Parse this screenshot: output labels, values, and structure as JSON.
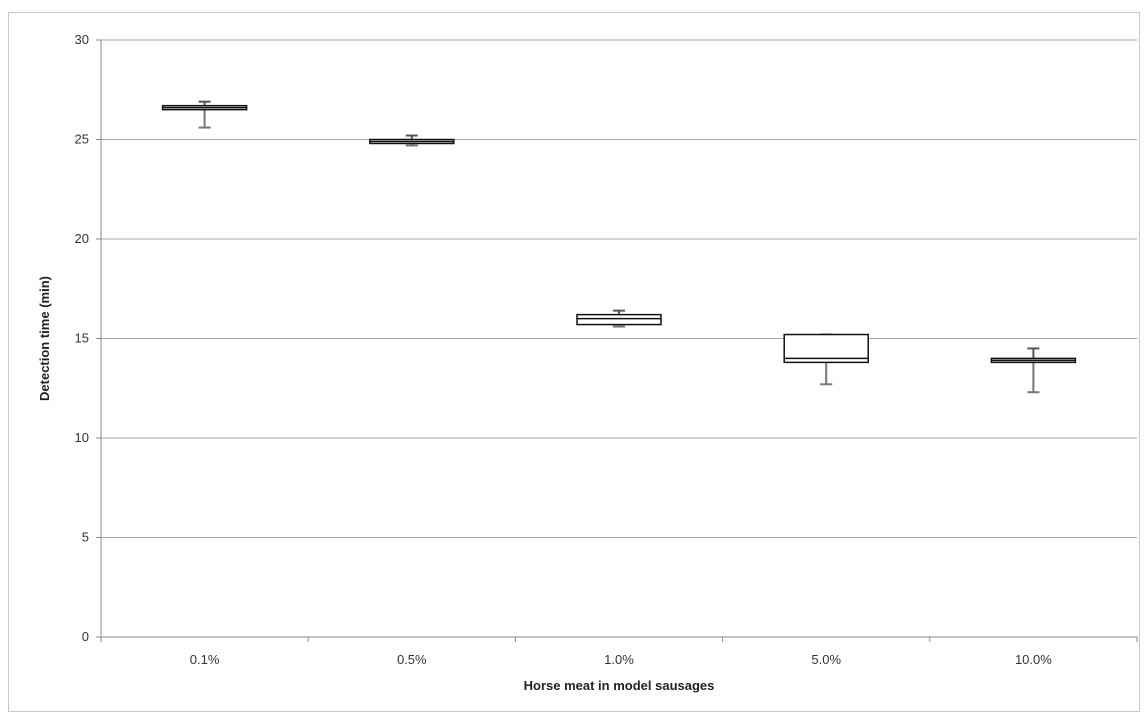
{
  "chart_data": {
    "type": "box",
    "title": "",
    "xlabel": "Horse meat in model sausages",
    "ylabel": "Detection time (min)",
    "ylim": [
      0,
      30
    ],
    "yticks": [
      0,
      5,
      10,
      15,
      20,
      25,
      30
    ],
    "grid": "horizontal",
    "categories": [
      "0.1%",
      "0.5%",
      "1.0%",
      "5.0%",
      "10.0%"
    ],
    "boxes": [
      {
        "category": "0.1%",
        "min": 25.6,
        "q1": 26.5,
        "median": 26.6,
        "q3": 26.7,
        "max": 26.9
      },
      {
        "category": "0.5%",
        "min": 24.7,
        "q1": 24.8,
        "median": 24.9,
        "q3": 25.0,
        "max": 25.2
      },
      {
        "category": "1.0%",
        "min": 15.6,
        "q1": 15.7,
        "median": 16.0,
        "q3": 16.2,
        "max": 16.4
      },
      {
        "category": "5.0%",
        "min": 12.7,
        "q1": 13.8,
        "median": 14.0,
        "q3": 15.2,
        "max": 15.2
      },
      {
        "category": "10.0%",
        "min": 12.3,
        "q1": 13.8,
        "median": 13.9,
        "q3": 14.0,
        "max": 14.5
      }
    ]
  }
}
